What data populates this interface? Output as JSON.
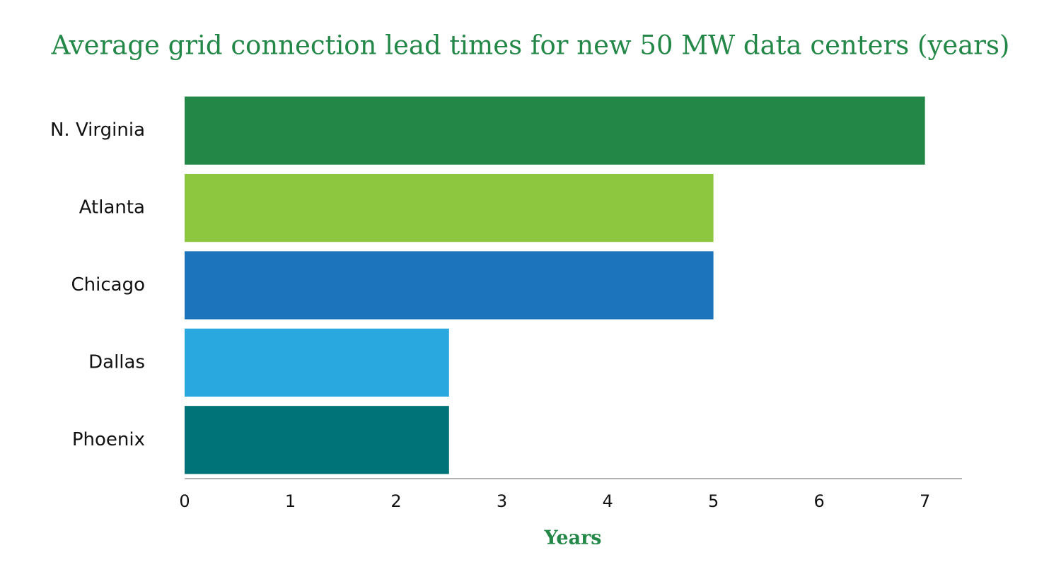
{
  "chart_data": {
    "type": "hbar",
    "title": "Average grid connection lead times for new 50 MW data centers (years)",
    "x_label": "Years",
    "categories": [
      "N. Virginia",
      "Atlanta",
      "Chicago",
      "Dallas",
      "Phoenix"
    ],
    "values": [
      7,
      5,
      5,
      2.5,
      2.5
    ],
    "colors": [
      "#238847",
      "#8dc63f",
      "#1c75bc",
      "#29a8e0",
      "#007378"
    ],
    "xlim": [
      0,
      7.35
    ],
    "xticks": [
      0,
      1,
      2,
      3,
      4,
      5,
      6,
      7
    ],
    "grid": false
  }
}
